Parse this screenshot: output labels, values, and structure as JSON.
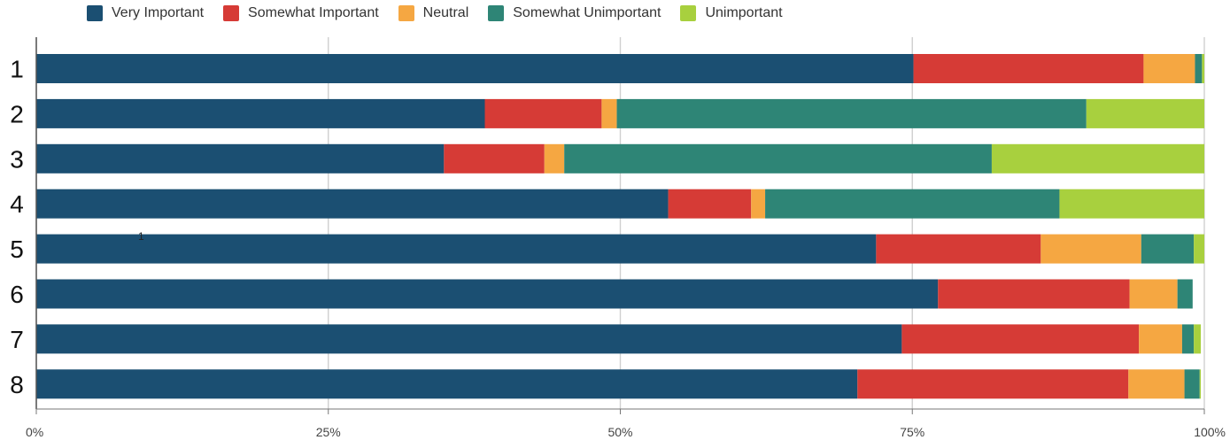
{
  "chart_data": {
    "type": "bar",
    "orientation": "horizontal",
    "stacked": true,
    "percent_stacked": true,
    "categories": [
      "1",
      "2",
      "3",
      "4",
      "5",
      "6",
      "7",
      "8"
    ],
    "series": [
      {
        "name": "Very Important",
        "color": "#1b4f72",
        "values": [
          75.1,
          38.4,
          34.9,
          54.1,
          71.9,
          77.2,
          74.1,
          70.3
        ]
      },
      {
        "name": "Somewhat Important",
        "color": "#d63b36",
        "values": [
          19.7,
          10.0,
          8.6,
          7.1,
          14.1,
          16.4,
          20.3,
          23.2
        ]
      },
      {
        "name": "Neutral",
        "color": "#f5a742",
        "values": [
          4.4,
          1.3,
          1.7,
          1.2,
          8.6,
          4.1,
          3.7,
          4.8
        ]
      },
      {
        "name": "Somewhat Unimportant",
        "color": "#2e8576",
        "values": [
          0.6,
          40.2,
          36.6,
          25.2,
          4.5,
          1.3,
          1.0,
          1.3
        ]
      },
      {
        "name": "Unimportant",
        "color": "#a8d03e",
        "values": [
          0.2,
          10.1,
          18.2,
          12.4,
          0.9,
          0.0,
          0.6,
          0.1
        ]
      }
    ],
    "x_ticks": [
      "0%",
      "25%",
      "50%",
      "75%",
      "100%"
    ],
    "xlim": [
      0,
      100
    ],
    "grid": "vertical",
    "legend_position": "top",
    "annotation": "1"
  }
}
